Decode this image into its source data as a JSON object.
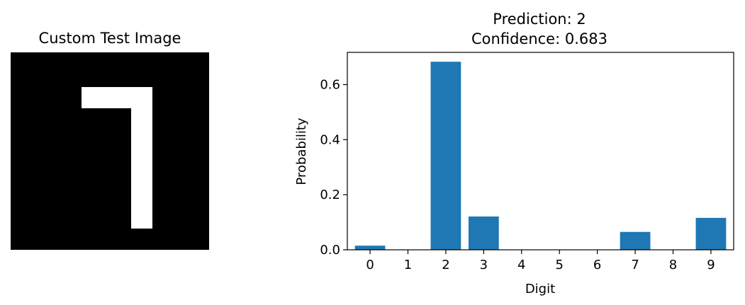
{
  "image_panel": {
    "title": "Custom Test Image",
    "background_color": "#000000",
    "stroke_color": "#ffffff"
  },
  "chart_data": {
    "type": "bar",
    "title_lines": [
      "Prediction: 2",
      "Confidence: 0.683"
    ],
    "xlabel": "Digit",
    "ylabel": "Probability",
    "categories": [
      "0",
      "1",
      "2",
      "3",
      "4",
      "5",
      "6",
      "7",
      "8",
      "9"
    ],
    "values": [
      0.015,
      0.0,
      0.683,
      0.121,
      0.0,
      0.0,
      0.0,
      0.065,
      0.0,
      0.116
    ],
    "ylim": [
      0,
      0.717
    ],
    "yticks": [
      0.0,
      0.2,
      0.4,
      0.6
    ],
    "ytick_labels": [
      "0.0",
      "0.2",
      "0.4",
      "0.6"
    ],
    "bar_color": "#1f77b4",
    "grid": false,
    "legend": "none"
  }
}
